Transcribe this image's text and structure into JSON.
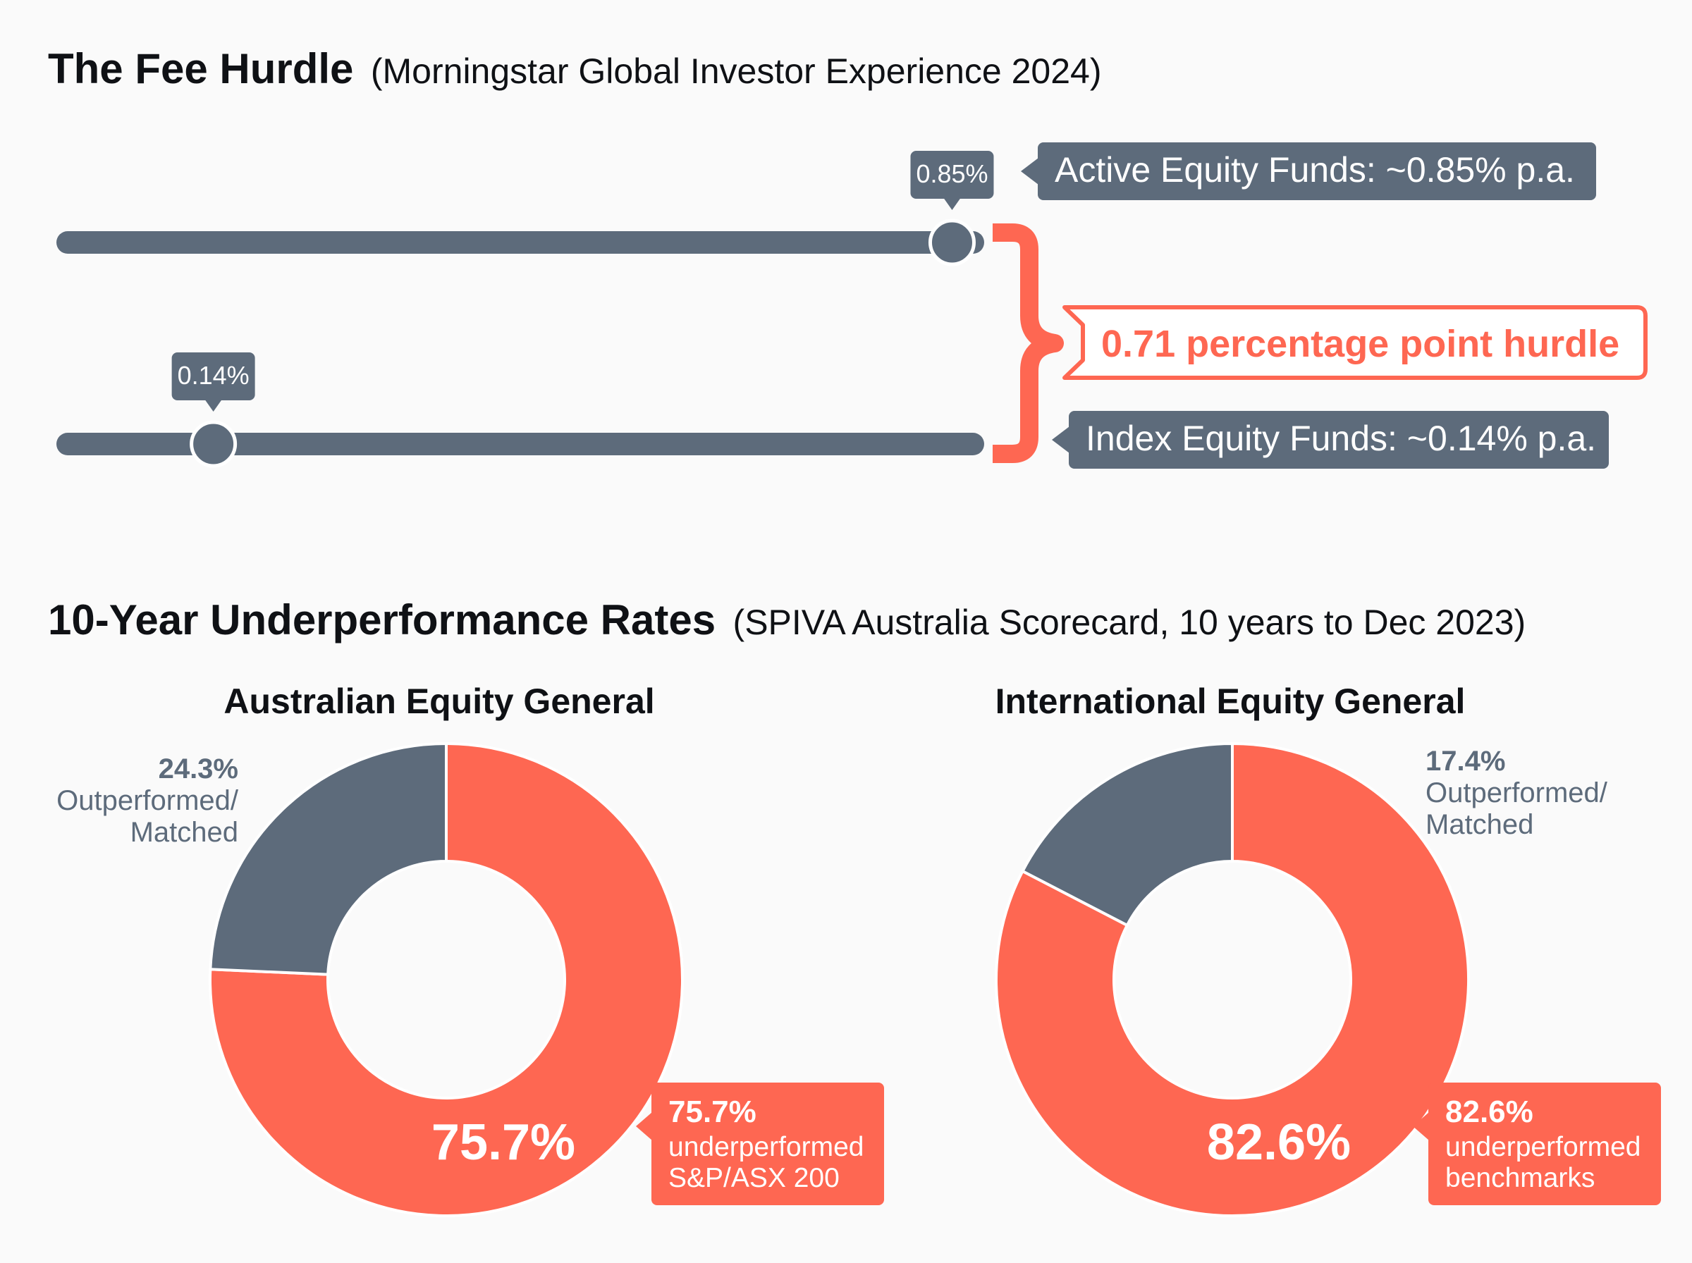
{
  "colors": {
    "slate": "#5d6b7b",
    "coral": "#fe6752",
    "white": "#ffffff",
    "text_dark": "#0f1115",
    "text_gray": "#5d6b7b",
    "background": "#fafafa"
  },
  "fee_section": {
    "title": "The Fee Hurdle",
    "source": "(Morningstar Global Investor Experience 2024)"
  },
  "perf_section": {
    "title": "10-Year Underperformance Rates",
    "source": "(SPIVA Australia Scorecard, 10 years to Dec 2023)"
  },
  "chart_data": [
    {
      "type": "bar",
      "title": "The Fee Hurdle",
      "subtitle": "(Morningstar Global Investor Experience 2024)",
      "unit": "% p.a.",
      "series": [
        {
          "name": "Active Equity Funds: ~0.85% p.a.",
          "value": 0.85,
          "marker_label": "0.85%"
        },
        {
          "name": "Index Equity Funds: ~0.14% p.a.",
          "value": 0.14,
          "marker_label": "0.14%"
        }
      ],
      "axis_max": 0.87,
      "annotation": {
        "text": "0.71 percentage point hurdle",
        "value": 0.71
      }
    },
    {
      "type": "pie",
      "title": "Australian Equity General",
      "slices": [
        {
          "label_pct": "75.7%",
          "value": 75.7,
          "label_lines": [
            "underperformed",
            "S&P/ASX 200"
          ],
          "color": "#fe6752"
        },
        {
          "label_pct": "24.3%",
          "value": 24.3,
          "label_lines": [
            "Outperformed/",
            "Matched"
          ],
          "color": "#5d6b7b"
        }
      ],
      "center_label": "75.7%"
    },
    {
      "type": "pie",
      "title": "International Equity General",
      "slices": [
        {
          "label_pct": "82.6%",
          "value": 82.6,
          "label_lines": [
            "underperformed",
            "benchmarks"
          ],
          "color": "#fe6752"
        },
        {
          "label_pct": "17.4%",
          "value": 17.4,
          "label_lines": [
            "Outperformed/",
            "Matched"
          ],
          "color": "#5d6b7b"
        }
      ],
      "center_label": "82.6%"
    }
  ]
}
